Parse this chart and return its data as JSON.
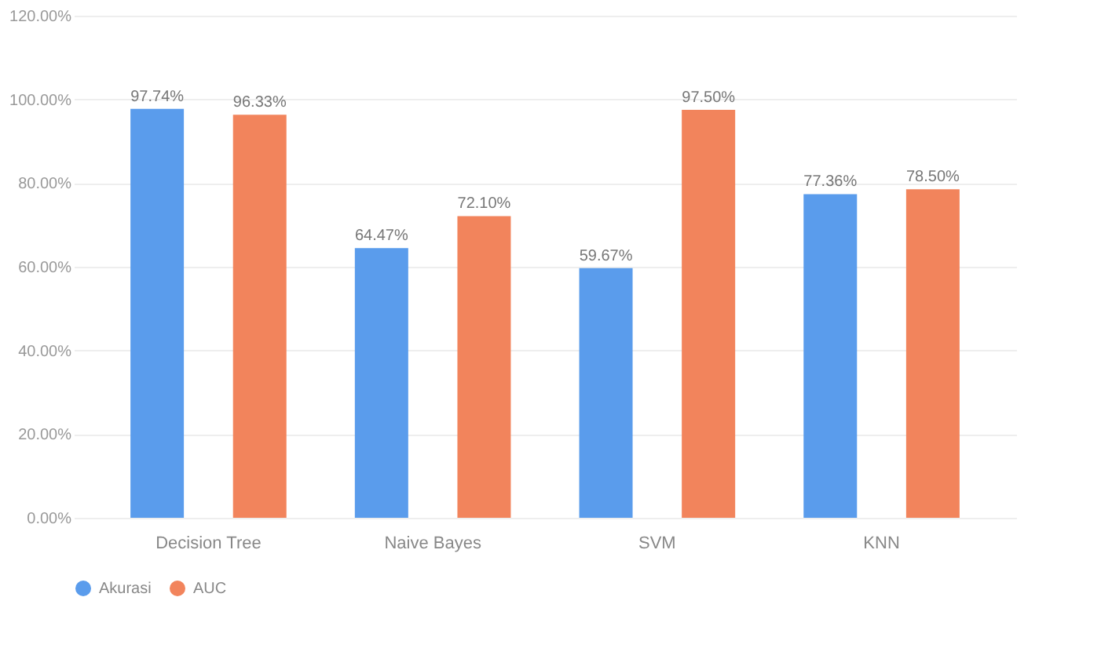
{
  "chart_data": {
    "type": "bar",
    "categories": [
      "Decision Tree",
      "Naive Bayes",
      "SVM",
      "KNN"
    ],
    "series": [
      {
        "name": "Akurasi",
        "color": "#5a9cec",
        "values": [
          97.74,
          64.47,
          59.67,
          77.36
        ]
      },
      {
        "name": "AUC",
        "color": "#f2845c",
        "values": [
          96.33,
          72.1,
          97.5,
          78.5
        ]
      }
    ],
    "ylim": [
      0,
      120
    ],
    "yticks": [
      {
        "value": 0,
        "label": "0.00%"
      },
      {
        "value": 20,
        "label": "20.00%"
      },
      {
        "value": 40,
        "label": "40.00%"
      },
      {
        "value": 60,
        "label": "60.00%"
      },
      {
        "value": 80,
        "label": "80.00%"
      },
      {
        "value": 100,
        "label": "100.00%"
      },
      {
        "value": 120,
        "label": "120.00%"
      }
    ],
    "value_labels": [
      [
        "97.74%",
        "64.47%",
        "59.67%",
        "77.36%"
      ],
      [
        "96.33%",
        "72.10%",
        "97.50%",
        "78.50%"
      ]
    ],
    "grid": "y",
    "legend": "bottom"
  }
}
